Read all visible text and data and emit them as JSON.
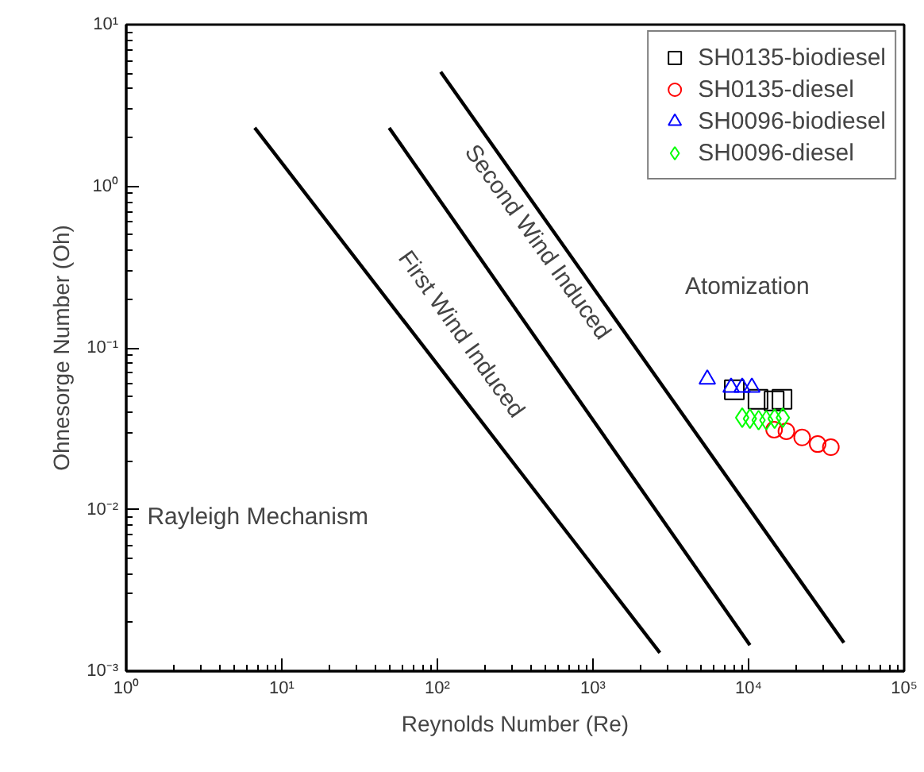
{
  "chart_data": {
    "type": "scatter",
    "xlabel": "Reynolds Number (Re)",
    "ylabel": "Ohnesorge Number (Oh)",
    "log": "xy",
    "legend": "top right",
    "grid": false,
    "xlim": [
      1,
      100000
    ],
    "ylim": [
      0.001,
      10
    ],
    "xticks": [
      {
        "value": 1,
        "label": "10⁰"
      },
      {
        "value": 10,
        "label": "10¹"
      },
      {
        "value": 100,
        "label": "10²"
      },
      {
        "value": 1000,
        "label": "10³"
      },
      {
        "value": 10000,
        "label": "10⁴"
      },
      {
        "value": 100000,
        "label": "10⁵"
      }
    ],
    "yticks": [
      {
        "value": 0.001,
        "label": "10⁻³"
      },
      {
        "value": 0.01,
        "label": "10⁻²"
      },
      {
        "value": 0.1,
        "label": "10⁻¹"
      },
      {
        "value": 1,
        "label": "10⁰"
      },
      {
        "value": 10,
        "label": "10¹"
      }
    ],
    "series": [
      {
        "type": "line",
        "color": "#000000",
        "x": [
          6.7,
          2690
        ],
        "values": [
          2.3,
          0.0013
        ]
      },
      {
        "type": "line",
        "color": "#000000",
        "x": [
          49,
          10200
        ],
        "values": [
          2.3,
          0.00145
        ]
      },
      {
        "type": "line",
        "color": "#000000",
        "x": [
          105,
          41000
        ],
        "values": [
          5.1,
          0.0015
        ]
      },
      {
        "name": "SH0135-biodiesel",
        "marker": "square",
        "color": "#000000",
        "x": [
          8100,
          11500,
          14600,
          16400
        ],
        "values": [
          0.055,
          0.048,
          0.047,
          0.048
        ]
      },
      {
        "name": "SH0135-diesel",
        "marker": "circle",
        "color": "#ff0000",
        "x": [
          14600,
          17500,
          22100,
          27800,
          33800
        ],
        "values": [
          0.0312,
          0.0305,
          0.0279,
          0.0254,
          0.0243
        ]
      },
      {
        "name": "SH0096-biodiesel",
        "marker": "triangle",
        "color": "#0000ff",
        "x": [
          5430,
          7720,
          9100,
          10500
        ],
        "values": [
          0.064,
          0.057,
          0.057,
          0.057
        ]
      },
      {
        "name": "SH0096-diesel",
        "marker": "diamond",
        "color": "#00ff00",
        "x": [
          9100,
          10200,
          11600,
          13000,
          14700,
          16600
        ],
        "values": [
          0.037,
          0.0365,
          0.0357,
          0.0357,
          0.0365,
          0.037
        ]
      }
    ],
    "annotations": [
      "First Wind Induced",
      "Second Wind Induced",
      "Atomization",
      "Rayleigh Mechanism"
    ]
  }
}
